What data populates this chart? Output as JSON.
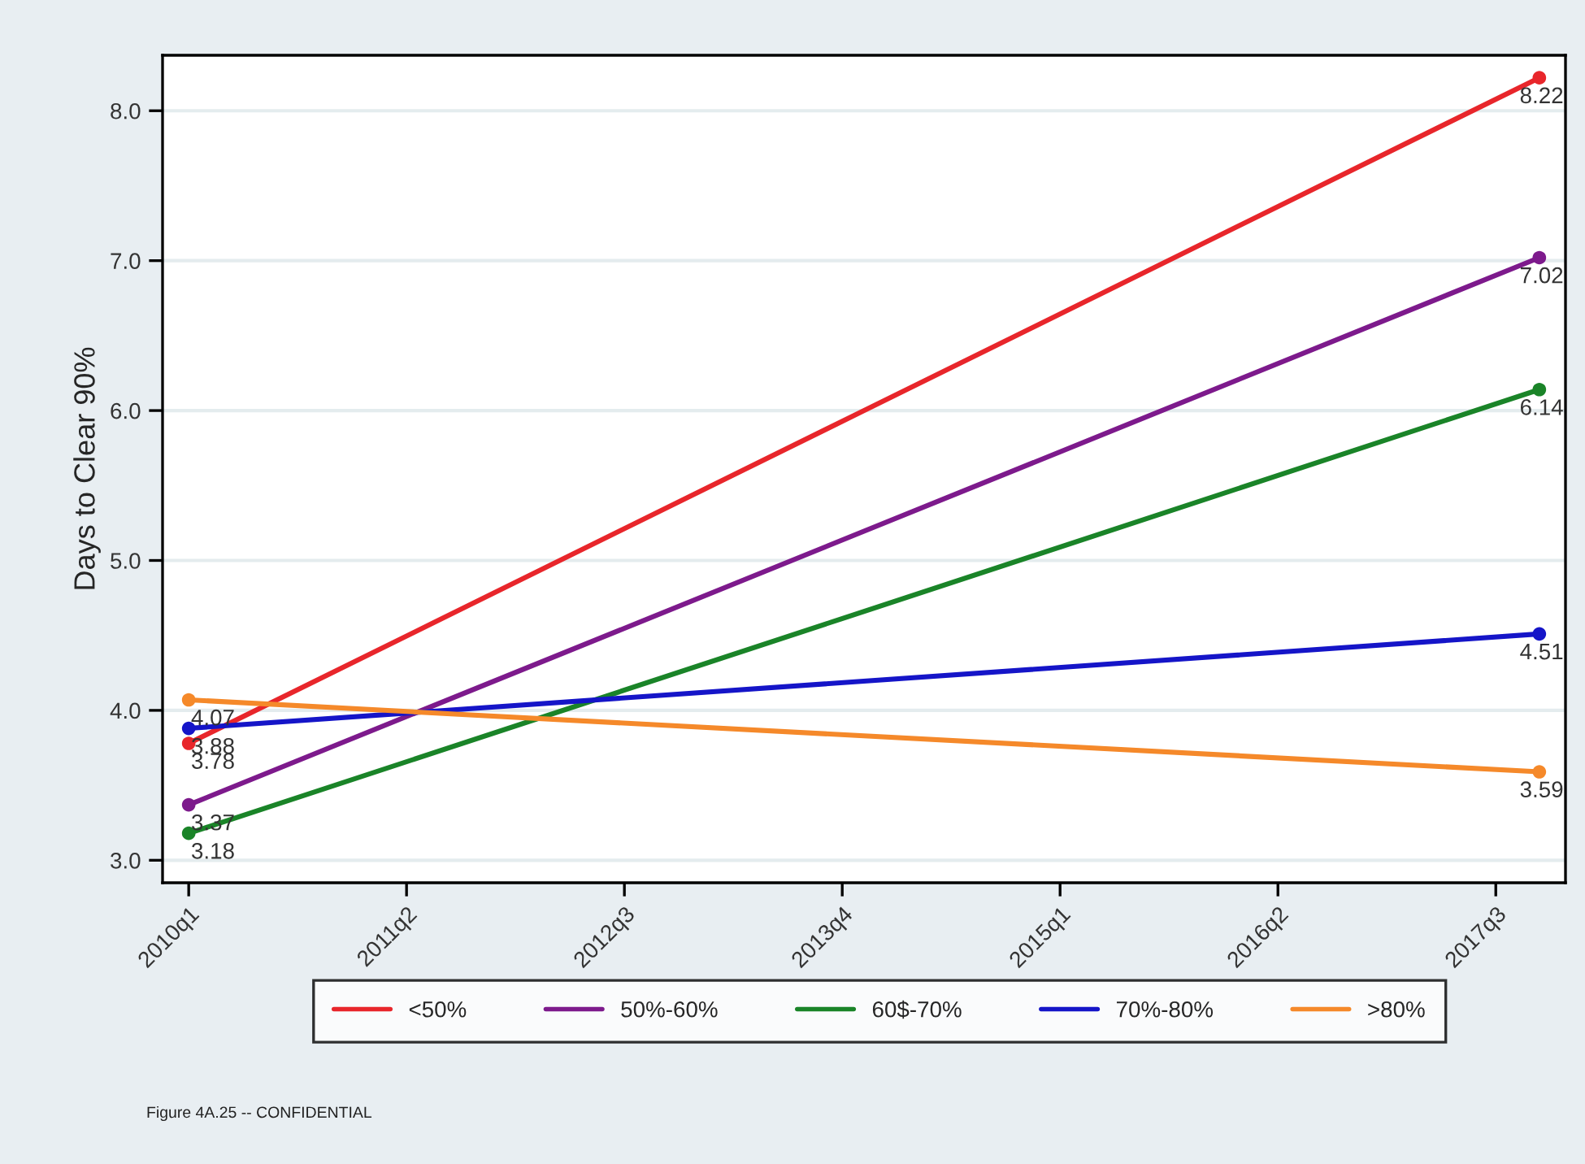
{
  "chart_data": {
    "type": "line",
    "ylabel": "Days to Clear 90%",
    "categories": [
      "2010q1",
      null,
      null,
      null,
      null,
      "2011q2",
      null,
      null,
      null,
      null,
      "2012q3",
      null,
      null,
      null,
      null,
      "2013q4",
      null,
      null,
      null,
      null,
      "2015q1",
      null,
      null,
      null,
      null,
      "2016q2",
      null,
      null,
      null,
      null,
      "2017q3",
      null
    ],
    "series": [
      {
        "name": "<50%",
        "color": "#e8262b",
        "values": [
          3.78,
          null,
          null,
          null,
          null,
          null,
          null,
          null,
          null,
          null,
          null,
          null,
          null,
          null,
          null,
          null,
          null,
          null,
          null,
          null,
          null,
          null,
          null,
          null,
          null,
          null,
          null,
          null,
          null,
          null,
          null,
          8.22
        ]
      },
      {
        "name": "50%-60%",
        "color": "#7d1a8c",
        "values": [
          3.37,
          null,
          null,
          null,
          null,
          null,
          null,
          null,
          null,
          null,
          null,
          null,
          null,
          null,
          null,
          null,
          null,
          null,
          null,
          null,
          null,
          null,
          null,
          null,
          null,
          null,
          null,
          null,
          null,
          null,
          null,
          7.02
        ]
      },
      {
        "name": "60$-70%",
        "color": "#1a8428",
        "values": [
          3.18,
          null,
          null,
          null,
          null,
          null,
          null,
          null,
          null,
          null,
          null,
          null,
          null,
          null,
          null,
          null,
          null,
          null,
          null,
          null,
          null,
          null,
          null,
          null,
          null,
          null,
          null,
          null,
          null,
          null,
          null,
          6.14
        ]
      },
      {
        "name": "70%-80%",
        "color": "#1515c8",
        "values": [
          3.88,
          null,
          null,
          null,
          null,
          null,
          null,
          null,
          null,
          null,
          null,
          null,
          null,
          null,
          null,
          null,
          null,
          null,
          null,
          null,
          null,
          null,
          null,
          null,
          null,
          null,
          null,
          null,
          null,
          null,
          null,
          4.51
        ]
      },
      {
        "name": ">80%",
        "color": "#f5892a",
        "values": [
          4.07,
          null,
          null,
          null,
          null,
          null,
          null,
          null,
          null,
          null,
          null,
          null,
          null,
          null,
          null,
          null,
          null,
          null,
          null,
          null,
          null,
          null,
          null,
          null,
          null,
          null,
          null,
          null,
          null,
          null,
          null,
          3.59
        ]
      }
    ],
    "ylim": [
      2.85,
      8.37
    ],
    "yticks": [
      {
        "value": 3,
        "label": "3.0"
      },
      {
        "value": 4,
        "label": "4.0"
      },
      {
        "value": 5,
        "label": "5.0"
      },
      {
        "value": 6,
        "label": "6.0"
      },
      {
        "value": 7,
        "label": "7.0"
      },
      {
        "value": 8,
        "label": "8.0"
      }
    ],
    "grid": "y",
    "legend": "bottom",
    "marker": "circle",
    "line_style": "solid",
    "data_labels": true,
    "annotations": [
      "Figure 4A.25 -- CONFIDENTIAL"
    ]
  }
}
